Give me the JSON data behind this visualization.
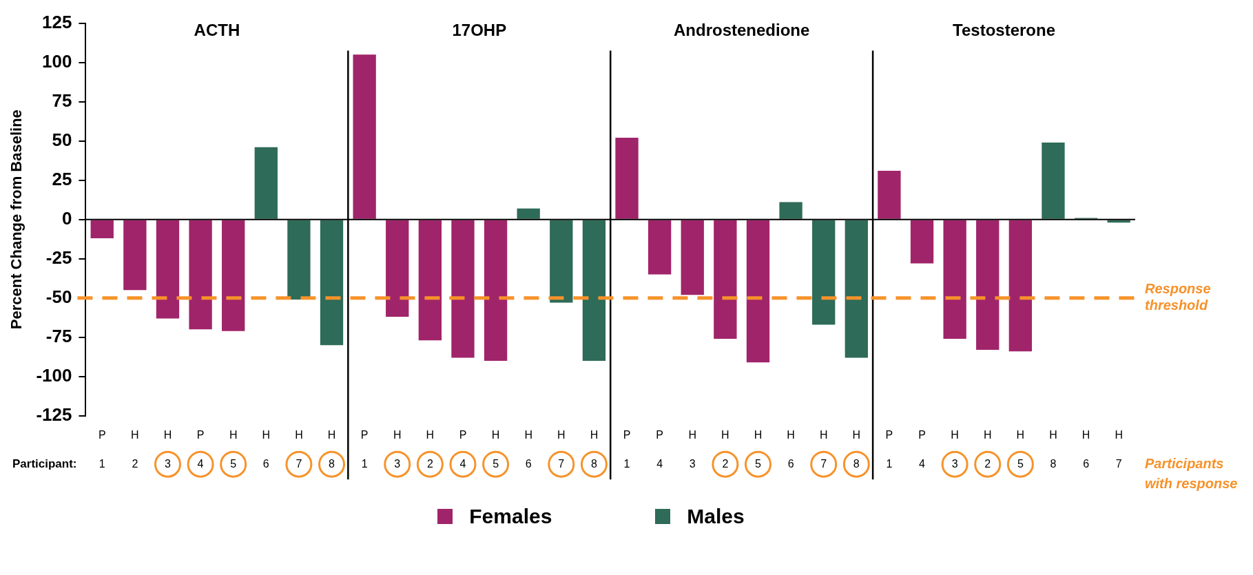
{
  "chart_data": {
    "type": "bar",
    "ylabel": "Percent Change from Baseline",
    "categories": [
      "P\n1",
      "H\n2",
      "H\n3",
      "P\n4",
      "H\n5",
      "H\n6",
      "H\n7",
      "H\n8",
      "P\n1",
      "H\n3",
      "H\n2",
      "P\n4",
      "H\n5",
      "H\n6",
      "H\n7",
      "H\n8",
      "P\n1",
      "P\n4",
      "H\n3",
      "H\n2",
      "H\n5",
      "H\n6",
      "H\n7",
      "H\n8",
      "P\n1",
      "P\n4",
      "H\n3",
      "H\n2",
      "H\n5",
      "H\n8",
      "H\n6",
      "H\n7"
    ],
    "series": [
      {
        "name": "Females",
        "color": "#a0246a",
        "values": [
          -12,
          -45,
          -63,
          -70,
          -71,
          null,
          null,
          null,
          105,
          -62,
          -77,
          -88,
          -90,
          null,
          null,
          null,
          52,
          -35,
          -48,
          -76,
          -91,
          null,
          null,
          null,
          31,
          -28,
          -76,
          -83,
          -84,
          null,
          null,
          null
        ]
      },
      {
        "name": "Males",
        "color": "#2e6b58",
        "values": [
          null,
          null,
          null,
          null,
          null,
          46,
          -51,
          -80,
          null,
          null,
          null,
          null,
          null,
          7,
          -53,
          -90,
          null,
          null,
          null,
          null,
          null,
          11,
          -67,
          -88,
          null,
          null,
          null,
          null,
          null,
          49,
          1,
          -2
        ]
      }
    ],
    "ylim": [
      -125,
      125
    ],
    "yticks": [
      -125,
      -100,
      -75,
      -50,
      -25,
      0,
      25,
      50,
      75,
      100,
      125
    ],
    "ref_lines": [
      {
        "axis": "y",
        "value": -50,
        "color": "#f7922a",
        "line_style": "dashed",
        "label": "Response threshold"
      }
    ],
    "annotations": [
      "ACTH",
      "17OHP",
      "Androstenedione",
      "Testosterone",
      "Participant:",
      "Participants with response"
    ],
    "legend": "bottom",
    "grid": false
  }
}
